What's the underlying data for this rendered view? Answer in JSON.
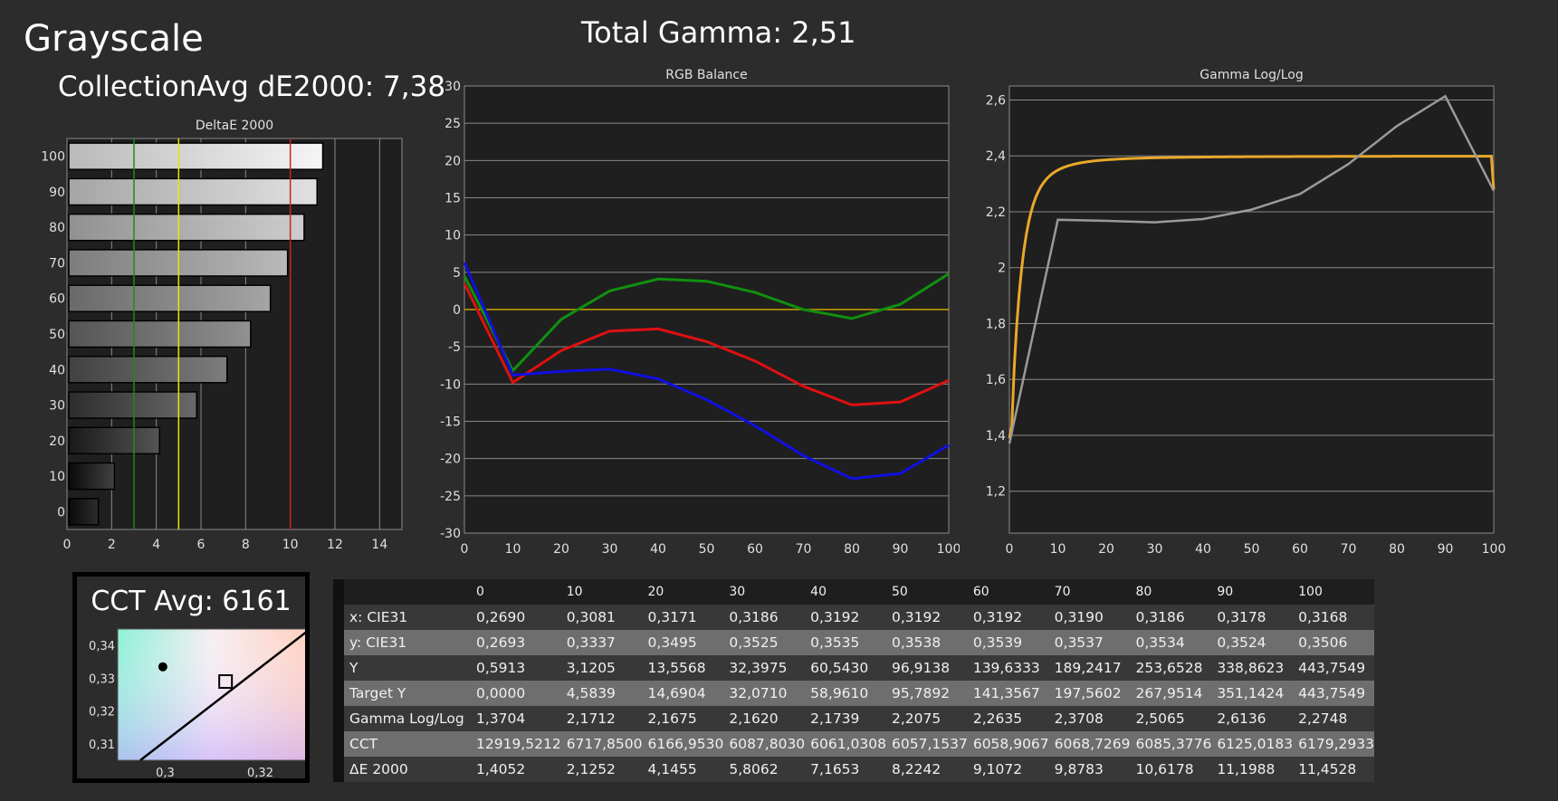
{
  "page": {
    "title": "Grayscale",
    "collection_avg": "CollectionAvg dE2000: 7,38",
    "total_gamma": "Total Gamma: 2,51",
    "cct_avg": "CCT Avg: 6161"
  },
  "chart_data": [
    {
      "type": "bar",
      "orientation": "horizontal",
      "title": "DeltaE 2000",
      "categories": [
        "100",
        "90",
        "80",
        "70",
        "60",
        "50",
        "40",
        "30",
        "20",
        "10",
        "0"
      ],
      "values": [
        11.4528,
        11.1988,
        10.6178,
        9.8783,
        9.1072,
        8.2242,
        7.1653,
        5.8062,
        4.1455,
        2.1252,
        1.4052
      ],
      "xlim": [
        0,
        15
      ],
      "xticks": [
        "0",
        "2",
        "4",
        "6",
        "8",
        "10",
        "12",
        "14"
      ],
      "thresholds": [
        {
          "value": 3,
          "color": "#1a8c1a"
        },
        {
          "value": 5,
          "color": "#e6e600"
        },
        {
          "value": 10,
          "color": "#cc2020"
        }
      ]
    },
    {
      "type": "line",
      "title": "RGB Balance",
      "x": [
        0,
        10,
        20,
        30,
        40,
        50,
        60,
        70,
        80,
        90,
        100
      ],
      "xticks": [
        "0",
        "10",
        "20",
        "30",
        "40",
        "50",
        "60",
        "70",
        "80",
        "90",
        "100"
      ],
      "yticks": [
        "30",
        "25",
        "20",
        "15",
        "10",
        "5",
        "0",
        "-5",
        "-10",
        "-15",
        "-20",
        "-25",
        "-30"
      ],
      "ylim": [
        -30,
        30
      ],
      "series": [
        {
          "color": "#e01010",
          "values": [
            3.5,
            -9.8,
            -5.5,
            -2.9,
            -2.6,
            -4.3,
            -6.9,
            -10.3,
            -12.8,
            -12.4,
            -9.5
          ]
        },
        {
          "color": "#109010",
          "values": [
            4.5,
            -8.2,
            -1.3,
            2.5,
            4.1,
            3.8,
            2.3,
            0.0,
            -1.2,
            0.7,
            4.8
          ]
        },
        {
          "color": "#1010e0",
          "values": [
            6.3,
            -8.8,
            -8.3,
            -8.0,
            -9.3,
            -12.1,
            -15.6,
            -19.6,
            -22.7,
            -22.0,
            -18.2
          ]
        }
      ],
      "reference": {
        "value": 0,
        "color": "#c8a000"
      }
    },
    {
      "type": "line",
      "title": "Gamma Log/Log",
      "x": [
        0,
        10,
        20,
        30,
        40,
        50,
        60,
        70,
        80,
        90,
        100
      ],
      "xticks": [
        "0",
        "10",
        "20",
        "30",
        "40",
        "50",
        "60",
        "70",
        "80",
        "90",
        "100"
      ],
      "yticks": [
        "2,6",
        "2,4",
        "2,2",
        "2",
        "1,8",
        "1,6",
        "1,4",
        "1,2"
      ],
      "ylim": [
        1.05,
        2.65
      ],
      "series": [
        {
          "color": "#9a9a9a",
          "values": [
            1.3704,
            2.1712,
            2.1675,
            2.162,
            2.1739,
            2.2075,
            2.2635,
            2.3708,
            2.5065,
            2.6136,
            2.2748
          ]
        }
      ],
      "target": {
        "color": "#e8a82a",
        "gamma": 2.4,
        "black_level": 0.0005
      }
    },
    {
      "type": "scatter",
      "title": "CCT Avg: 6161",
      "xticks": [
        "0,3",
        "0,32"
      ],
      "yticks": [
        "0,34",
        "0,33",
        "0,32",
        "0,31"
      ],
      "xlim": [
        0.29,
        0.33
      ],
      "ylim": [
        0.305,
        0.345
      ],
      "measured": {
        "x": 0.2995,
        "y": 0.3335,
        "marker": "dot"
      },
      "target": {
        "x": 0.3127,
        "y": 0.329,
        "marker": "square"
      }
    },
    {
      "type": "table",
      "columns": [
        "",
        "0",
        "10",
        "20",
        "30",
        "40",
        "50",
        "60",
        "70",
        "80",
        "90",
        "100"
      ],
      "rows": [
        [
          "x: CIE31",
          "0,2690",
          "0,3081",
          "0,3171",
          "0,3186",
          "0,3192",
          "0,3192",
          "0,3192",
          "0,3190",
          "0,3186",
          "0,3178",
          "0,3168"
        ],
        [
          "y: CIE31",
          "0,2693",
          "0,3337",
          "0,3495",
          "0,3525",
          "0,3535",
          "0,3538",
          "0,3539",
          "0,3537",
          "0,3534",
          "0,3524",
          "0,3506"
        ],
        [
          "Y",
          "0,5913",
          "3,1205",
          "13,5568",
          "32,3975",
          "60,5430",
          "96,9138",
          "139,6333",
          "189,2417",
          "253,6528",
          "338,8623",
          "443,7549"
        ],
        [
          "Target Y",
          "0,0000",
          "4,5839",
          "14,6904",
          "32,0710",
          "58,9610",
          "95,7892",
          "141,3567",
          "197,5602",
          "267,9514",
          "351,1424",
          "443,7549"
        ],
        [
          "Gamma Log/Log",
          "1,3704",
          "2,1712",
          "2,1675",
          "2,1620",
          "2,1739",
          "2,2075",
          "2,2635",
          "2,3708",
          "2,5065",
          "2,6136",
          "2,2748"
        ],
        [
          "CCT",
          "12919,5212",
          "6717,8500",
          "6166,9530",
          "6087,8030",
          "6061,0308",
          "6057,1537",
          "6058,9067",
          "6068,7269",
          "6085,3776",
          "6125,0183",
          "6179,2933"
        ],
        [
          "ΔE 2000",
          "1,4052",
          "2,1252",
          "4,1455",
          "5,8062",
          "7,1653",
          "8,2242",
          "9,1072",
          "9,8783",
          "10,6178",
          "11,1988",
          "11,4528"
        ]
      ]
    }
  ]
}
